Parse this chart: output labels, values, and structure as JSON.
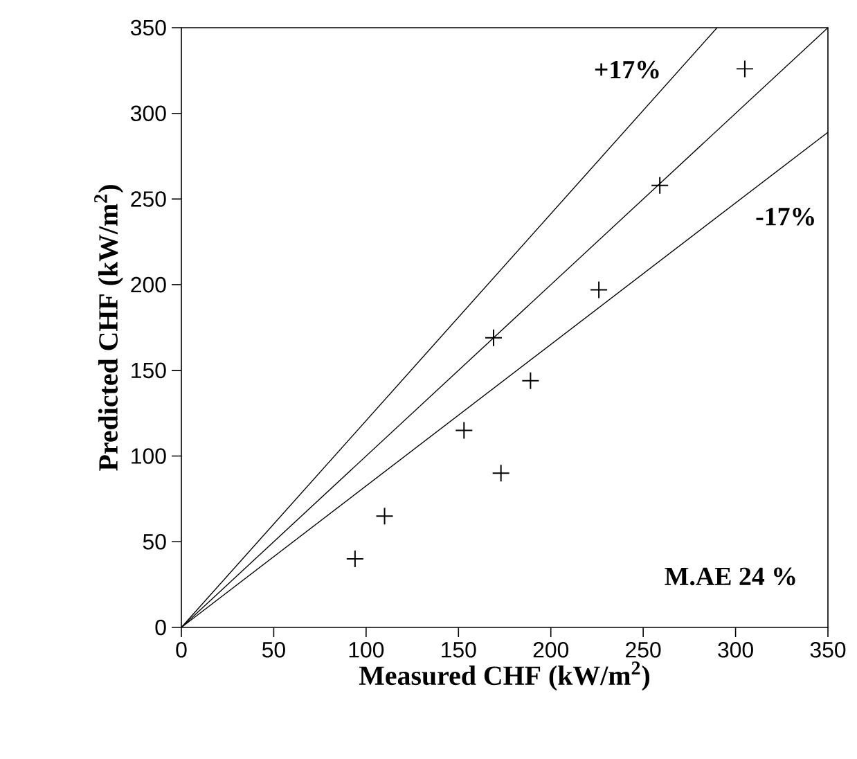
{
  "chart_data": {
    "type": "scatter",
    "xlabel": "Measured CHF (kW/m$^{2}$)",
    "ylabel": "Predicted CHF (kW/m$^{2}$)",
    "xlim": [
      0,
      350
    ],
    "ylim": [
      0,
      350
    ],
    "xticks": [
      0,
      50,
      100,
      150,
      200,
      250,
      300,
      350
    ],
    "yticks": [
      0,
      50,
      100,
      150,
      200,
      250,
      300,
      350
    ],
    "annotations": [
      "+17%",
      "-17%",
      "M.AE  24 %"
    ],
    "series": [
      {
        "marker": "cross",
        "color": "#000000",
        "x": [
          94,
          110,
          153,
          173,
          169,
          189,
          226,
          259,
          305
        ],
        "values": [
          40,
          65,
          115,
          90,
          169,
          144,
          197,
          258,
          326
        ]
      },
      {
        "type": "line",
        "marker": "none",
        "line_style": "solid",
        "color": "#000000",
        "x": [
          0,
          290
        ],
        "values": [
          0,
          350
        ]
      },
      {
        "type": "line",
        "marker": "none",
        "line_style": "solid",
        "color": "#000000",
        "x": [
          0,
          350
        ],
        "values": [
          0,
          350
        ]
      },
      {
        "type": "line",
        "marker": "none",
        "line_style": "solid",
        "color": "#000000",
        "x": [
          0,
          350
        ],
        "values": [
          0,
          289
        ]
      }
    ]
  }
}
